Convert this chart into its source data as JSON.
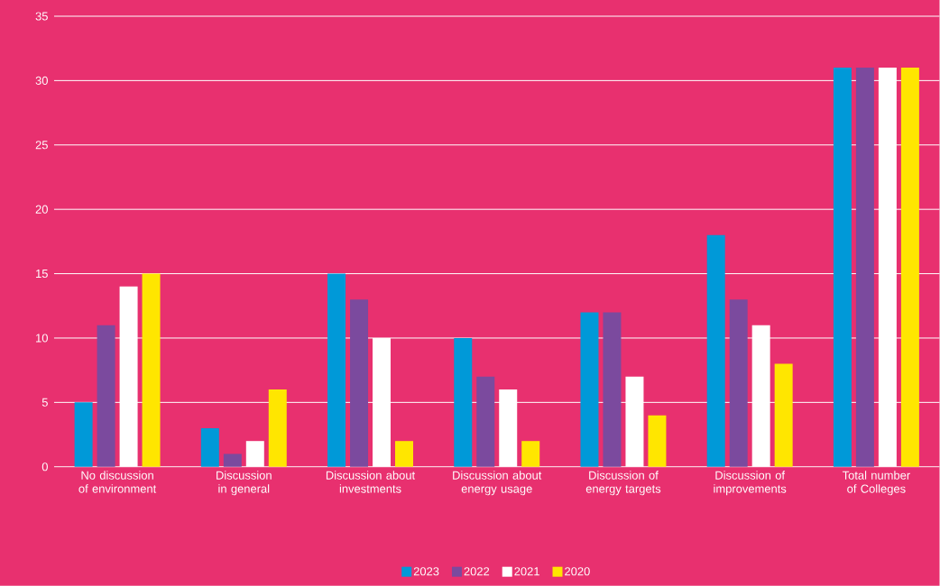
{
  "chart_data": {
    "type": "bar",
    "categories": [
      "No discussion of environment",
      "Discussion in general",
      "Discussion about investments",
      "Discussion about energy usage",
      "Discussion of energy targets",
      "Discussion of improvements",
      "Total number of Colleges"
    ],
    "series": [
      {
        "name": "2023",
        "color": "#0099d8",
        "values": [
          5,
          3,
          15,
          10,
          12,
          18,
          31
        ]
      },
      {
        "name": "2022",
        "color": "#7b4a9e",
        "values": [
          11,
          1,
          13,
          7,
          12,
          13,
          31
        ]
      },
      {
        "name": "2021",
        "color": "#ffffff",
        "values": [
          14,
          2,
          10,
          6,
          7,
          11,
          31
        ]
      },
      {
        "name": "2020",
        "color": "#ffe600",
        "values": [
          15,
          6,
          2,
          2,
          4,
          8,
          31
        ]
      }
    ],
    "ylim": [
      0,
      35
    ],
    "yticks": [
      0,
      5,
      10,
      15,
      20,
      25,
      30,
      35
    ],
    "grid": "y",
    "legend": "bottom"
  }
}
